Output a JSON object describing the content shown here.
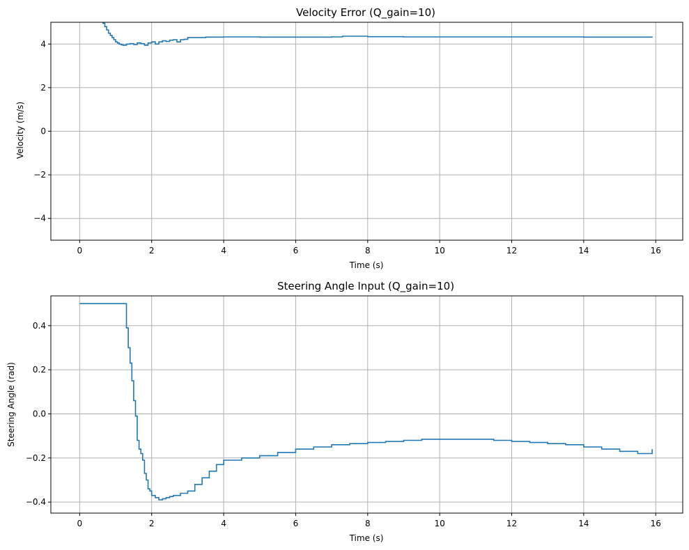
{
  "chart_data": [
    {
      "type": "line",
      "step": true,
      "title": "Velocity Error (Q_gain=10)",
      "xlabel": "Time (s)",
      "ylabel": "Velocity (m/s)",
      "xlim": [
        -0.8,
        16.75
      ],
      "ylim": [
        -5,
        5
      ],
      "xticks": [
        0,
        2,
        4,
        6,
        8,
        10,
        12,
        14,
        16
      ],
      "yticks": [
        -4,
        -2,
        0,
        2,
        4
      ],
      "ytick_labels": [
        "−4",
        "−2",
        "0",
        "2",
        "4"
      ],
      "grid": true,
      "color": "#1f77b4",
      "series": [
        {
          "x": [
            0.6,
            0.65,
            0.7,
            0.75,
            0.8,
            0.85,
            0.9,
            0.95,
            1.0,
            1.05,
            1.1,
            1.15,
            1.2,
            1.3,
            1.4,
            1.5,
            1.6,
            1.7,
            1.8,
            1.9,
            2.0,
            2.1,
            2.2,
            2.3,
            2.4,
            2.5,
            2.6,
            2.7,
            2.8,
            2.9,
            3.0,
            3.5,
            4.0,
            5.0,
            6.0,
            7.0,
            7.3,
            8.0,
            9.0,
            10.0,
            11.0,
            12.0,
            13.0,
            14.0,
            15.0,
            15.9
          ],
          "y": [
            5.2,
            4.95,
            4.8,
            4.65,
            4.5,
            4.4,
            4.3,
            4.2,
            4.1,
            4.05,
            4.0,
            3.97,
            3.95,
            4.0,
            4.02,
            3.98,
            4.05,
            4.02,
            3.95,
            4.05,
            4.1,
            4.0,
            4.1,
            4.15,
            4.12,
            4.18,
            4.2,
            4.1,
            4.2,
            4.22,
            4.3,
            4.32,
            4.33,
            4.32,
            4.32,
            4.33,
            4.36,
            4.34,
            4.33,
            4.33,
            4.33,
            4.33,
            4.33,
            4.32,
            4.32,
            4.3
          ]
        }
      ]
    },
    {
      "type": "line",
      "step": true,
      "title": "Steering Angle Input (Q_gain=10)",
      "xlabel": "Time (s)",
      "ylabel": "Steering Angle (rad)",
      "xlim": [
        -0.8,
        16.75
      ],
      "ylim": [
        -0.45,
        0.535
      ],
      "xticks": [
        0,
        2,
        4,
        6,
        8,
        10,
        12,
        14,
        16
      ],
      "yticks": [
        -0.4,
        -0.2,
        0.0,
        0.2,
        0.4
      ],
      "ytick_labels": [
        "−0.4",
        "−0.2",
        "0.0",
        "0.2",
        "0.4"
      ],
      "grid": true,
      "color": "#1f77b4",
      "series": [
        {
          "x": [
            0.0,
            1.0,
            1.25,
            1.3,
            1.35,
            1.4,
            1.45,
            1.5,
            1.55,
            1.6,
            1.65,
            1.7,
            1.75,
            1.8,
            1.85,
            1.9,
            1.95,
            2.0,
            2.1,
            2.2,
            2.3,
            2.4,
            2.5,
            2.6,
            2.8,
            3.0,
            3.2,
            3.4,
            3.6,
            3.8,
            4.0,
            4.5,
            5.0,
            5.5,
            6.0,
            6.5,
            7.0,
            7.5,
            8.0,
            8.5,
            9.0,
            9.5,
            10.0,
            10.5,
            11.0,
            11.5,
            12.0,
            12.5,
            13.0,
            13.5,
            14.0,
            14.5,
            15.0,
            15.5,
            15.9
          ],
          "y": [
            0.5,
            0.5,
            0.5,
            0.39,
            0.3,
            0.23,
            0.15,
            0.06,
            -0.01,
            -0.12,
            -0.16,
            -0.18,
            -0.21,
            -0.27,
            -0.3,
            -0.34,
            -0.35,
            -0.37,
            -0.38,
            -0.39,
            -0.385,
            -0.38,
            -0.375,
            -0.37,
            -0.36,
            -0.35,
            -0.32,
            -0.29,
            -0.26,
            -0.23,
            -0.21,
            -0.2,
            -0.19,
            -0.175,
            -0.16,
            -0.15,
            -0.14,
            -0.135,
            -0.13,
            -0.125,
            -0.12,
            -0.115,
            -0.115,
            -0.115,
            -0.115,
            -0.12,
            -0.125,
            -0.13,
            -0.135,
            -0.14,
            -0.15,
            -0.16,
            -0.17,
            -0.18,
            -0.16
          ]
        }
      ]
    }
  ]
}
